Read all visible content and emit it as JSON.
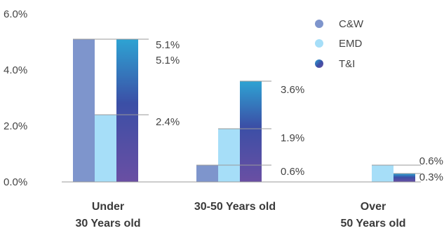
{
  "chart_data": {
    "type": "bar",
    "categories": [
      [
        "Under",
        "30 Years old"
      ],
      [
        "30-50 Years old"
      ],
      [
        "Over",
        "50 Years old"
      ]
    ],
    "series": [
      {
        "name": "C&W",
        "values": [
          5.1,
          0.6,
          0.0
        ],
        "color": "#7e95cc"
      },
      {
        "name": "EMD",
        "values": [
          2.4,
          1.9,
          0.6
        ],
        "color": "#a6def8"
      },
      {
        "name": "T&I",
        "values": [
          5.1,
          3.6,
          0.3
        ],
        "color_top": "#2ea3d3",
        "color_mid": "#3b4fa6",
        "color_bottom": "#6a4fa3"
      }
    ],
    "yticks": [
      "0.0%",
      "2.0%",
      "4.0%",
      "6.0%"
    ],
    "ylim": [
      0,
      6
    ],
    "data_labels": [
      {
        "text": "5.1%",
        "cat": 0,
        "series": 0
      },
      {
        "text": "5.1%",
        "cat": 0,
        "series": 2
      },
      {
        "text": "2.4%",
        "cat": 0,
        "series": 1
      },
      {
        "text": "3.6%",
        "cat": 1,
        "series": 2
      },
      {
        "text": "1.9%",
        "cat": 1,
        "series": 1
      },
      {
        "text": "0.6%",
        "cat": 1,
        "series": 0
      },
      {
        "text": "0.6%",
        "cat": 2,
        "series": 1
      },
      {
        "text": "0.3%",
        "cat": 2,
        "series": 2
      }
    ],
    "legend_position": "top-right",
    "grid": false
  }
}
